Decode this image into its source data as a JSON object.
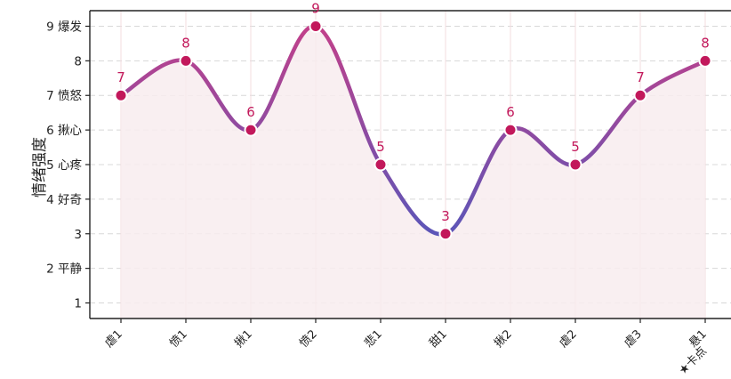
{
  "chart_data": {
    "type": "line",
    "title": "",
    "xlabel": "",
    "ylabel": "情绪强度",
    "ylim": [
      0.55,
      9.45
    ],
    "y_ticks": [
      {
        "value": 1,
        "label": "1"
      },
      {
        "value": 2,
        "label": "2 平静"
      },
      {
        "value": 3,
        "label": "3"
      },
      {
        "value": 4,
        "label": "4 好奇"
      },
      {
        "value": 5,
        "label": "5 心疼"
      },
      {
        "value": 6,
        "label": "6 揪心"
      },
      {
        "value": 7,
        "label": "7 愤怒"
      },
      {
        "value": 8,
        "label": "8"
      },
      {
        "value": 9,
        "label": "9 爆发"
      }
    ],
    "categories": [
      "虐1",
      "愤1",
      "揪1",
      "愤2",
      "悲1",
      "甜1",
      "揪2",
      "虐2",
      "虐3",
      "悬1"
    ],
    "category_notes": [
      "",
      "",
      "",
      "",
      "",
      "",
      "",
      "",
      "",
      "★卡点"
    ],
    "values": [
      7,
      8,
      6,
      9,
      5,
      3,
      6,
      5,
      7,
      8
    ],
    "data_labels": [
      "7",
      "8",
      "6",
      "9",
      "5",
      "3",
      "6",
      "5",
      "7",
      "8"
    ],
    "grid": "horizontal dashed",
    "smooth": true,
    "fill_under": true,
    "colors": {
      "line_high": "#c2408a",
      "line_low": "#5b55b8",
      "marker": "#c2185b",
      "label": "#c2185b",
      "fill": "#f8ecef",
      "grid": "#d8d8d8",
      "vgrid": "#f3dcdf"
    }
  }
}
